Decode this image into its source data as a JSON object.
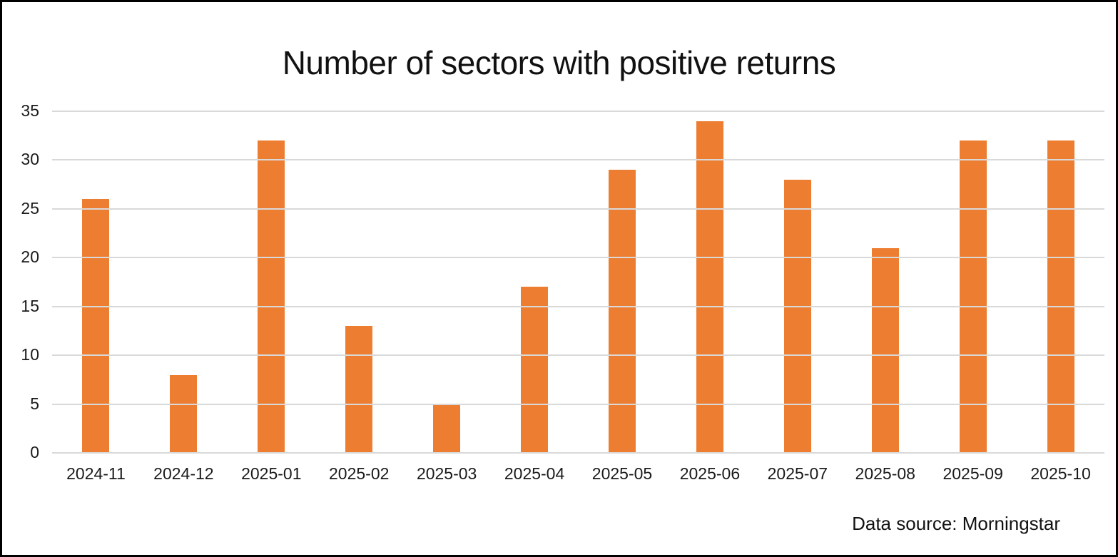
{
  "title": "Number of sectors with positive returns",
  "footer": {
    "data_source": "Data source: Morningstar"
  },
  "colors": {
    "bar": "#ed7d31",
    "gridline": "#d9d9d9",
    "border": "#000000",
    "text": "#1a1a1a"
  },
  "chart_data": {
    "type": "bar",
    "title": "Number of sectors with positive returns",
    "categories": [
      "2024-11",
      "2024-12",
      "2025-01",
      "2025-02",
      "2025-03",
      "2025-04",
      "2025-05",
      "2025-06",
      "2025-07",
      "2025-08",
      "2025-09",
      "2025-10"
    ],
    "values": [
      26,
      8,
      32,
      13,
      5,
      17,
      29,
      34,
      28,
      21,
      32,
      32
    ],
    "xlabel": "",
    "ylabel": "",
    "ylim": [
      0,
      35
    ],
    "yticks": [
      0,
      5,
      10,
      15,
      20,
      25,
      30,
      35
    ],
    "grid": true,
    "legend_position": "none",
    "annotation": "Data source: Morningstar"
  }
}
